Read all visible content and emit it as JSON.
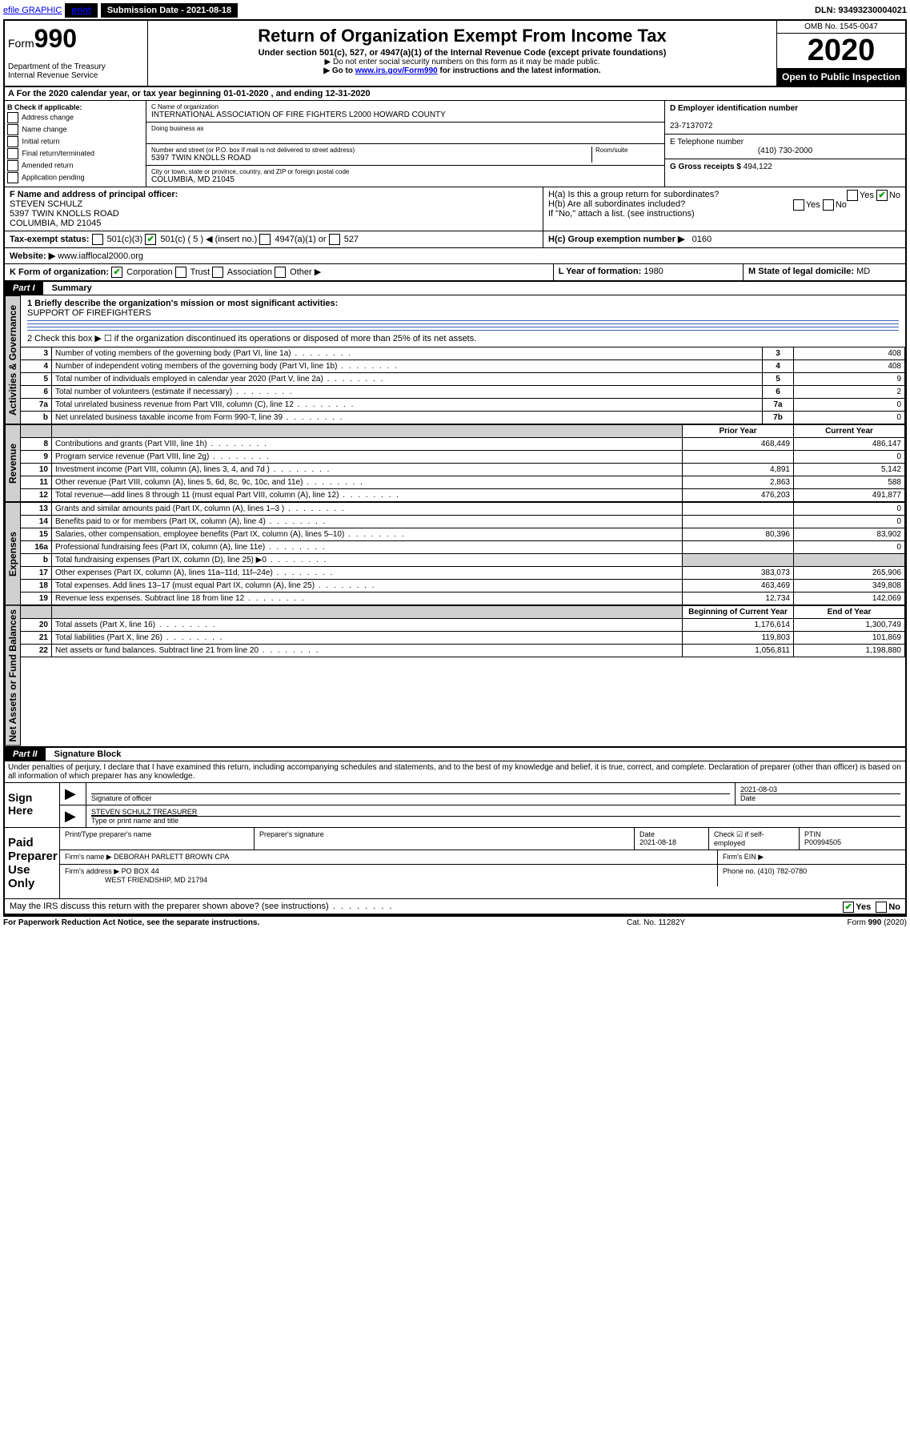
{
  "topbar": {
    "efile": "efile GRAPHIC",
    "print": "print",
    "submission_label": "Submission Date - 2021-08-18",
    "dln": "DLN: 93493230004021"
  },
  "header": {
    "form_label": "Form",
    "form_number": "990",
    "dept": "Department of the Treasury",
    "irs": "Internal Revenue Service",
    "title": "Return of Organization Exempt From Income Tax",
    "subtitle": "Under section 501(c), 527, or 4947(a)(1) of the Internal Revenue Code (except private foundations)",
    "note1": "▶ Do not enter social security numbers on this form as it may be made public.",
    "note2_prefix": "▶ Go to ",
    "note2_link": "www.irs.gov/Form990",
    "note2_suffix": " for instructions and the latest information.",
    "omb": "OMB No. 1545-0047",
    "year": "2020",
    "open": "Open to Public Inspection"
  },
  "period": "A For the 2020 calendar year, or tax year beginning 01-01-2020    , and ending 12-31-2020",
  "box_b": {
    "label": "B Check if applicable:",
    "items": [
      "Address change",
      "Name change",
      "Initial return",
      "Final return/terminated",
      "Amended return",
      "Application pending"
    ]
  },
  "box_c": {
    "name_label": "C Name of organization",
    "name": "INTERNATIONAL ASSOCIATION OF FIRE FIGHTERS L2000 HOWARD COUNTY",
    "dba_label": "Doing business as",
    "addr_label": "Number and street (or P.O. box if mail is not delivered to street address)",
    "room_label": "Room/suite",
    "addr": "5397 TWIN KNOLLS ROAD",
    "city_label": "City or town, state or province, country, and ZIP or foreign postal code",
    "city": "COLUMBIA, MD  21045"
  },
  "box_d": {
    "label": "D Employer identification number",
    "value": "23-7137072"
  },
  "box_e": {
    "label": "E Telephone number",
    "value": "(410) 730-2000"
  },
  "box_g": {
    "label": "G Gross receipts $",
    "value": "494,122"
  },
  "box_f": {
    "label": "F  Name and address of principal officer:",
    "name": "STEVEN SCHULZ",
    "addr1": "5397 TWIN KNOLLS ROAD",
    "addr2": "COLUMBIA, MD  21045"
  },
  "box_h": {
    "a": "H(a)  Is this a group return for subordinates?",
    "b": "H(b)  Are all subordinates included?",
    "note": "If \"No,\" attach a list. (see instructions)",
    "c": "H(c)  Group exemption number ▶",
    "c_val": "0160",
    "yes": "Yes",
    "no": "No"
  },
  "tax_status": {
    "label": "Tax-exempt status:",
    "opts": [
      "501(c)(3)",
      "501(c) ( 5 ) ◀ (insert no.)",
      "4947(a)(1) or",
      "527"
    ]
  },
  "website": {
    "label": "Website: ▶",
    "value": "www.iafflocal2000.org"
  },
  "box_k": {
    "label": "K Form of organization:",
    "opts": [
      "Corporation",
      "Trust",
      "Association",
      "Other ▶"
    ]
  },
  "box_l": {
    "label": "L Year of formation:",
    "value": "1980"
  },
  "box_m": {
    "label": "M State of legal domicile:",
    "value": "MD"
  },
  "part1": {
    "header": "Part I",
    "title": "Summary",
    "l1": "1  Briefly describe the organization's mission or most significant activities:",
    "mission": "SUPPORT OF FIREFIGHTERS",
    "l2": "2   Check this box ▶ ☐  if the organization discontinued its operations or disposed of more than 25% of its net assets.",
    "side_gov": "Activities & Governance",
    "side_rev": "Revenue",
    "side_exp": "Expenses",
    "side_net": "Net Assets or Fund Balances",
    "rows_gov": [
      {
        "n": "3",
        "d": "Number of voting members of the governing body (Part VI, line 1a)",
        "b": "3",
        "v": "408"
      },
      {
        "n": "4",
        "d": "Number of independent voting members of the governing body (Part VI, line 1b)",
        "b": "4",
        "v": "408"
      },
      {
        "n": "5",
        "d": "Total number of individuals employed in calendar year 2020 (Part V, line 2a)",
        "b": "5",
        "v": "9"
      },
      {
        "n": "6",
        "d": "Total number of volunteers (estimate if necessary)",
        "b": "6",
        "v": "2"
      },
      {
        "n": "7a",
        "d": "Total unrelated business revenue from Part VIII, column (C), line 12",
        "b": "7a",
        "v": "0"
      },
      {
        "n": "b",
        "d": "Net unrelated business taxable income from Form 990-T, line 39",
        "b": "7b",
        "v": "0"
      }
    ],
    "prior_label": "Prior Year",
    "current_label": "Current Year",
    "rows_rev": [
      {
        "n": "8",
        "d": "Contributions and grants (Part VIII, line 1h)",
        "p": "468,449",
        "c": "486,147"
      },
      {
        "n": "9",
        "d": "Program service revenue (Part VIII, line 2g)",
        "p": "",
        "c": "0"
      },
      {
        "n": "10",
        "d": "Investment income (Part VIII, column (A), lines 3, 4, and 7d )",
        "p": "4,891",
        "c": "5,142"
      },
      {
        "n": "11",
        "d": "Other revenue (Part VIII, column (A), lines 5, 6d, 8c, 9c, 10c, and 11e)",
        "p": "2,863",
        "c": "588"
      },
      {
        "n": "12",
        "d": "Total revenue—add lines 8 through 11 (must equal Part VIII, column (A), line 12)",
        "p": "476,203",
        "c": "491,877"
      }
    ],
    "rows_exp": [
      {
        "n": "13",
        "d": "Grants and similar amounts paid (Part IX, column (A), lines 1–3 )",
        "p": "",
        "c": "0"
      },
      {
        "n": "14",
        "d": "Benefits paid to or for members (Part IX, column (A), line 4)",
        "p": "",
        "c": "0"
      },
      {
        "n": "15",
        "d": "Salaries, other compensation, employee benefits (Part IX, column (A), lines 5–10)",
        "p": "80,396",
        "c": "83,902"
      },
      {
        "n": "16a",
        "d": "Professional fundraising fees (Part IX, column (A), line 11e)",
        "p": "",
        "c": "0"
      },
      {
        "n": "b",
        "d": "Total fundraising expenses (Part IX, column (D), line 25) ▶0",
        "p": "shaded",
        "c": "shaded"
      },
      {
        "n": "17",
        "d": "Other expenses (Part IX, column (A), lines 11a–11d, 11f–24e)",
        "p": "383,073",
        "c": "265,906"
      },
      {
        "n": "18",
        "d": "Total expenses. Add lines 13–17 (must equal Part IX, column (A), line 25)",
        "p": "463,469",
        "c": "349,808"
      },
      {
        "n": "19",
        "d": "Revenue less expenses. Subtract line 18 from line 12",
        "p": "12,734",
        "c": "142,069"
      }
    ],
    "begin_label": "Beginning of Current Year",
    "end_label": "End of Year",
    "rows_net": [
      {
        "n": "20",
        "d": "Total assets (Part X, line 16)",
        "p": "1,176,614",
        "c": "1,300,749"
      },
      {
        "n": "21",
        "d": "Total liabilities (Part X, line 26)",
        "p": "119,803",
        "c": "101,869"
      },
      {
        "n": "22",
        "d": "Net assets or fund balances. Subtract line 21 from line 20",
        "p": "1,056,811",
        "c": "1,198,880"
      }
    ]
  },
  "part2": {
    "header": "Part II",
    "title": "Signature Block",
    "perjury": "Under penalties of perjury, I declare that I have examined this return, including accompanying schedules and statements, and to the best of my knowledge and belief, it is true, correct, and complete. Declaration of preparer (other than officer) is based on all information of which preparer has any knowledge.",
    "sign_here": "Sign Here",
    "sig_officer": "Signature of officer",
    "sig_date": "2021-08-03",
    "date_label": "Date",
    "officer_name": "STEVEN SCHULZ  TREASURER",
    "type_name": "Type or print name and title",
    "paid": "Paid Preparer Use Only",
    "prep_name_label": "Print/Type preparer's name",
    "prep_sig_label": "Preparer's signature",
    "prep_date_label": "Date",
    "prep_date": "2021-08-18",
    "self_emp": "Check ☑ if self-employed",
    "ptin_label": "PTIN",
    "ptin": "P00994505",
    "firm_name_label": "Firm's name    ▶",
    "firm_name": "DEBORAH PARLETT BROWN CPA",
    "firm_ein_label": "Firm's EIN ▶",
    "firm_addr_label": "Firm's address ▶",
    "firm_addr1": "PO BOX 44",
    "firm_addr2": "WEST FRIENDSHIP, MD  21794",
    "phone_label": "Phone no.",
    "phone": "(410) 782-0780",
    "discuss": "May the IRS discuss this return with the preparer shown above? (see instructions)"
  },
  "footer": {
    "paperwork": "For Paperwork Reduction Act Notice, see the separate instructions.",
    "cat": "Cat. No. 11282Y",
    "form": "Form 990 (2020)"
  }
}
